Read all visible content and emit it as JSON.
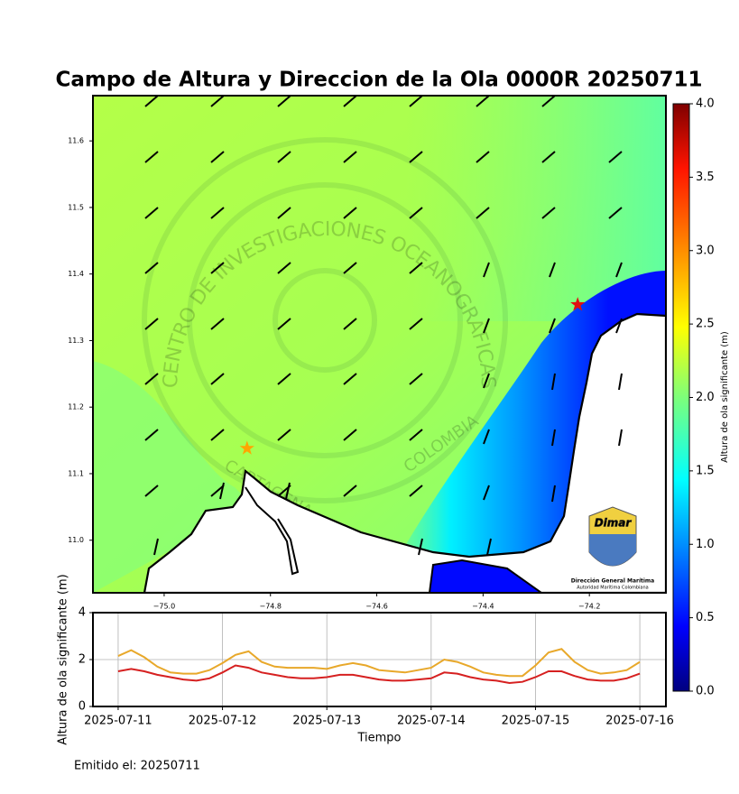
{
  "title": "Campo de Altura y Direccion de la Ola 0000R 20250711",
  "footer": "Emitido el: 20250711",
  "logo": {
    "wordmark": "Dimar",
    "name": "Dirección General Marítima",
    "subtitle": "Autoridad Marítima Colombiana"
  },
  "watermark": {
    "ring": "CENTRO DE INVESTIGACIONES OCEANOGRAFICAS E HIDROGRAFICAS",
    "city": "CARTAGENA",
    "country": "COLOMBIA"
  },
  "chart_data": [
    {
      "type": "map",
      "xlim": [
        -75.134,
        -74.056
      ],
      "ylim": [
        10.921,
        11.668
      ],
      "xticks": [
        {
          "value": -75.0,
          "label": "−75.0"
        },
        {
          "value": -74.8,
          "label": "−74.8"
        },
        {
          "value": -74.6,
          "label": "−74.6"
        },
        {
          "value": -74.4,
          "label": "−74.4"
        },
        {
          "value": -74.2,
          "label": "−74.2"
        }
      ],
      "yticks": [
        {
          "value": 11.0,
          "label": "11.0"
        },
        {
          "value": 11.1,
          "label": "11.1"
        },
        {
          "value": 11.2,
          "label": "11.2"
        },
        {
          "value": 11.3,
          "label": "11.3"
        },
        {
          "value": 11.4,
          "label": "11.4"
        },
        {
          "value": 11.5,
          "label": "11.5"
        },
        {
          "value": 11.6,
          "label": "11.6"
        }
      ],
      "markers": [
        {
          "lon": -74.844,
          "lat": 11.138,
          "color": "#ffa500"
        },
        {
          "lon": -74.222,
          "lat": 11.354,
          "color": "#e01010"
        }
      ],
      "colorbar": {
        "label": "Altura de ola significante (m)",
        "lim": [
          0,
          4
        ],
        "ticks": [
          {
            "value": 0,
            "label": "0.0"
          },
          {
            "value": 0.5,
            "label": "0.5"
          },
          {
            "value": 1,
            "label": "1.0"
          },
          {
            "value": 1.5,
            "label": "1.5"
          },
          {
            "value": 2,
            "label": "2.0"
          },
          {
            "value": 2.5,
            "label": "2.5"
          },
          {
            "value": 3,
            "label": "3.0"
          },
          {
            "value": 3.5,
            "label": "3.5"
          },
          {
            "value": 4,
            "label": "4.0"
          }
        ]
      }
    },
    {
      "type": "line",
      "xlabel": "Tiempo",
      "ylabel": "Altura de ola significante (m)",
      "x": [
        0,
        3,
        6,
        9,
        12,
        15,
        18,
        21,
        24,
        27,
        30,
        33,
        36,
        39,
        42,
        45,
        48,
        51,
        54,
        57,
        60,
        63,
        66,
        69,
        72,
        75,
        78,
        81,
        84,
        87,
        90,
        93,
        96,
        99,
        102,
        105,
        108,
        111,
        114,
        117,
        120
      ],
      "xlim": [
        -5.8,
        126
      ],
      "ylim": [
        0,
        4
      ],
      "yticks": [
        0,
        2,
        4
      ],
      "grid": true,
      "xticks": [
        {
          "value": 0,
          "label": "2025-07-11"
        },
        {
          "value": 24,
          "label": "2025-07-12"
        },
        {
          "value": 48,
          "label": "2025-07-13"
        },
        {
          "value": 72,
          "label": "2025-07-14"
        },
        {
          "value": 96,
          "label": "2025-07-15"
        },
        {
          "value": 120,
          "label": "2025-07-16"
        }
      ],
      "series": [
        {
          "color": "#e8a82a",
          "values": [
            2.15,
            2.4,
            2.1,
            1.7,
            1.45,
            1.4,
            1.4,
            1.55,
            1.85,
            2.2,
            2.35,
            1.9,
            1.7,
            1.65,
            1.65,
            1.65,
            1.6,
            1.75,
            1.85,
            1.75,
            1.55,
            1.5,
            1.45,
            1.55,
            1.65,
            2.0,
            1.9,
            1.7,
            1.45,
            1.35,
            1.3,
            1.3,
            1.75,
            2.3,
            2.45,
            1.9,
            1.55,
            1.4,
            1.45,
            1.55,
            1.9
          ]
        },
        {
          "color": "#d62020",
          "values": [
            1.5,
            1.6,
            1.5,
            1.35,
            1.25,
            1.15,
            1.1,
            1.2,
            1.45,
            1.75,
            1.65,
            1.45,
            1.35,
            1.25,
            1.2,
            1.2,
            1.25,
            1.35,
            1.35,
            1.25,
            1.15,
            1.1,
            1.1,
            1.15,
            1.2,
            1.45,
            1.4,
            1.25,
            1.15,
            1.1,
            1.0,
            1.05,
            1.25,
            1.5,
            1.5,
            1.3,
            1.15,
            1.1,
            1.1,
            1.2,
            1.4
          ]
        }
      ]
    }
  ]
}
